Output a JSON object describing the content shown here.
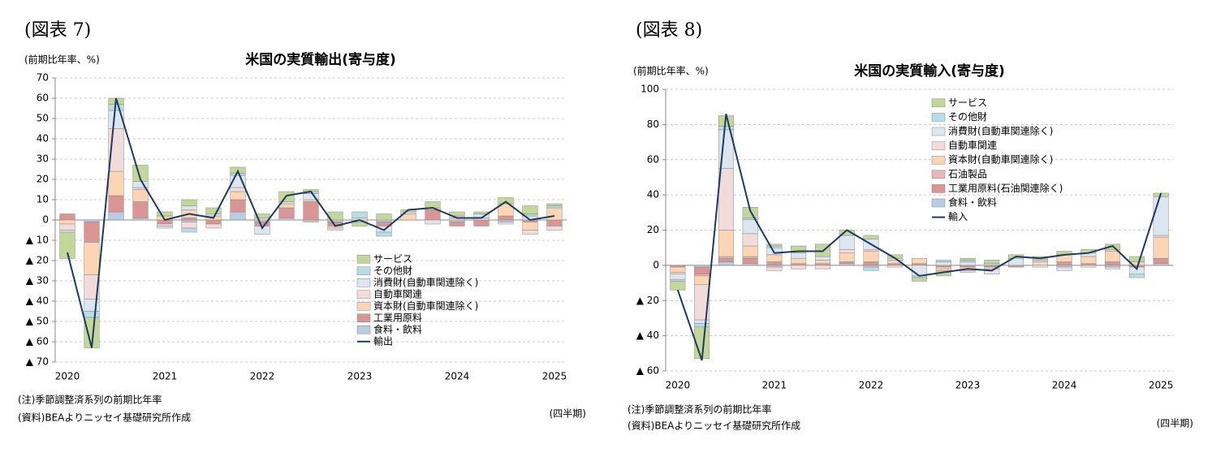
{
  "chart_data": [
    {
      "type": "bar",
      "stacked": true,
      "figure_label": "(図表 7)",
      "title": "米国の実質輸出(寄与度)",
      "y_label": "(前期比年率、%)",
      "x_label": "(四半期)",
      "notes": [
        "(注)季節調整済系列の前期比年率",
        "(資料)BEAよりニッセイ基礎研究所作成"
      ],
      "categories": [
        "2020",
        null,
        null,
        null,
        "2021",
        null,
        null,
        null,
        "2022",
        null,
        null,
        null,
        "2023",
        null,
        null,
        null,
        "2024",
        null,
        null,
        null,
        "2025"
      ],
      "ylim": [
        -70,
        70
      ],
      "yticks": [
        {
          "value": -70,
          "label": "▲ 70"
        },
        {
          "value": -60,
          "label": "▲ 60"
        },
        {
          "value": -50,
          "label": "▲ 50"
        },
        {
          "value": -40,
          "label": "▲ 40"
        },
        {
          "value": -30,
          "label": "▲ 30"
        },
        {
          "value": -20,
          "label": "▲ 20"
        },
        {
          "value": -10,
          "label": "▲ 10"
        },
        0,
        10,
        20,
        30,
        40,
        50,
        60,
        70
      ],
      "grid": true,
      "legend": "lower right",
      "series": [
        {
          "name": "サービス",
          "color": "#c4d79b",
          "values": [
            -13,
            -15,
            3,
            8,
            2,
            3,
            3,
            3,
            2,
            5,
            1,
            4,
            -2,
            3,
            1,
            3,
            2,
            1,
            3,
            4,
            1
          ]
        },
        {
          "name": "その他財",
          "color": "#b7dee8",
          "values": [
            0,
            -3,
            3,
            0,
            0,
            -2,
            0,
            1,
            0,
            0,
            1,
            0,
            3,
            -2,
            0,
            0,
            0,
            0,
            0,
            1,
            1
          ]
        },
        {
          "name": "消費財(自動車関連除く)",
          "color": "#dce6f1",
          "values": [
            -1,
            -6,
            9,
            3,
            -1,
            2,
            1,
            6,
            -4,
            1,
            3,
            0,
            1,
            -3,
            1,
            -2,
            0,
            2,
            -1,
            2,
            0
          ]
        },
        {
          "name": "自動車関連",
          "color": "#f2dcdb",
          "values": [
            -3,
            -12,
            21,
            1,
            -1,
            -3,
            -2,
            2,
            0,
            0,
            0,
            -1,
            0,
            0,
            0,
            0,
            1,
            1,
            0,
            -2,
            -2
          ]
        },
        {
          "name": "資本財(自動車関連除く)",
          "color": "#fcd5b4",
          "values": [
            -2,
            -16,
            12,
            6,
            2,
            4,
            2,
            4,
            1,
            2,
            1,
            -1,
            -1,
            0,
            3,
            1,
            1,
            0,
            6,
            -4,
            6
          ]
        },
        {
          "name": "工業用原料",
          "color": "#da9694",
          "values": [
            3,
            -10,
            8,
            8,
            -2,
            1,
            -2,
            6,
            -2,
            5,
            9,
            -2,
            0,
            -2,
            0,
            5,
            -2,
            -3,
            2,
            -1,
            -3
          ]
        },
        {
          "name": "食料・飲料",
          "color": "#b8cce4",
          "values": [
            0,
            -1,
            4,
            1,
            0,
            -1,
            0,
            4,
            -1,
            1,
            -1,
            -1,
            0,
            -1,
            0,
            0,
            -1,
            0,
            -1,
            0,
            0
          ]
        },
        {
          "name": "輸出",
          "type": "line",
          "color": "#1f3a5f",
          "values": [
            -16,
            -63,
            60,
            20,
            0,
            3,
            1,
            24,
            -4,
            12,
            14,
            -3,
            0,
            -5,
            5,
            6,
            1,
            1,
            9,
            0,
            2
          ]
        }
      ]
    },
    {
      "type": "bar",
      "stacked": true,
      "figure_label": "(図表 8)",
      "title": "米国の実質輸入(寄与度)",
      "y_label": "(前期比年率、%)",
      "x_label": "(四半期)",
      "notes": [
        "(注)季節調整済系列の前期比年率",
        "(資料)BEAよりニッセイ基礎研究所作成"
      ],
      "categories": [
        "2020",
        null,
        null,
        null,
        "2021",
        null,
        null,
        null,
        "2022",
        null,
        null,
        null,
        "2023",
        null,
        null,
        null,
        "2024",
        null,
        null,
        null,
        "2025"
      ],
      "ylim": [
        -60,
        100
      ],
      "yticks": [
        {
          "value": -60,
          "label": "▲ 60"
        },
        {
          "value": -40,
          "label": "▲ 40"
        },
        {
          "value": -20,
          "label": "▲ 20"
        },
        0,
        20,
        40,
        60,
        80,
        100
      ],
      "grid": true,
      "legend": "upper right",
      "series": [
        {
          "name": "サービス",
          "color": "#c4d79b",
          "values": [
            -5,
            -18,
            6,
            6,
            1,
            4,
            7,
            3,
            2,
            2,
            -2,
            -3,
            1,
            2,
            2,
            2,
            2,
            2,
            3,
            3,
            2
          ]
        },
        {
          "name": "その他財",
          "color": "#b7dee8",
          "values": [
            -1,
            -2,
            2,
            1,
            1,
            0,
            0,
            0,
            -2,
            0,
            -1,
            1,
            1,
            1,
            0,
            0,
            0,
            0,
            0,
            -2,
            0
          ]
        },
        {
          "name": "消費財(自動車関連除く)",
          "color": "#dce6f1",
          "values": [
            -3,
            -2,
            22,
            8,
            4,
            3,
            2,
            8,
            6,
            1,
            -6,
            2,
            2,
            -3,
            4,
            -1,
            -2,
            2,
            -1,
            -4,
            22
          ]
        },
        {
          "name": "自動車関連",
          "color": "#f2dcdb",
          "values": [
            -1,
            -20,
            35,
            7,
            -2,
            -2,
            -2,
            2,
            1,
            -1,
            0,
            -1,
            -1,
            0,
            0,
            1,
            0,
            -1,
            1,
            0,
            1
          ]
        },
        {
          "name": "資本財(自動車関連除く)",
          "color": "#fcd5b4",
          "values": [
            -3,
            -5,
            15,
            6,
            4,
            3,
            2,
            5,
            6,
            2,
            3,
            -1,
            -2,
            -1,
            0,
            2,
            4,
            4,
            6,
            2,
            12
          ]
        },
        {
          "name": "石油製品",
          "color": "#e6b8b7",
          "values": [
            0,
            -1,
            1,
            1,
            0,
            0,
            0,
            0,
            0,
            0,
            0,
            0,
            0,
            0,
            0,
            0,
            0,
            0,
            0,
            0,
            0
          ]
        },
        {
          "name": "工業用原料(石油関連除く)",
          "color": "#da9694",
          "values": [
            -1,
            -4,
            2,
            3,
            2,
            1,
            1,
            1,
            2,
            1,
            1,
            -1,
            -1,
            -1,
            -1,
            0,
            2,
            1,
            2,
            -1,
            3
          ]
        },
        {
          "name": "食料・飲料",
          "color": "#b8cce4",
          "values": [
            0,
            -1,
            2,
            1,
            -1,
            0,
            0,
            1,
            -1,
            0,
            0,
            0,
            0,
            0,
            0,
            0,
            -1,
            0,
            -1,
            0,
            1
          ]
        },
        {
          "name": "輸入",
          "type": "line",
          "color": "#1f3a5f",
          "values": [
            -14,
            -54,
            86,
            31,
            7,
            8,
            8,
            20,
            12,
            4,
            -6,
            -4,
            -2,
            -3,
            5,
            4,
            6,
            7,
            11,
            -2,
            41
          ]
        }
      ]
    }
  ]
}
